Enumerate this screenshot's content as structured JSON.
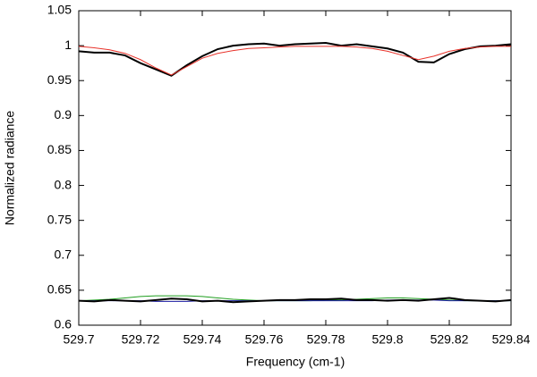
{
  "chart_data": {
    "type": "line",
    "x_label": "Frequency (cm-1)",
    "y_label": "Normalized radiance",
    "x": [
      529.7,
      529.705,
      529.71,
      529.715,
      529.72,
      529.725,
      529.73,
      529.735,
      529.74,
      529.745,
      529.75,
      529.755,
      529.76,
      529.765,
      529.77,
      529.775,
      529.78,
      529.785,
      529.79,
      529.795,
      529.8,
      529.805,
      529.81,
      529.815,
      529.82,
      529.825,
      529.83,
      529.835,
      529.84
    ],
    "series": [
      {
        "color": "#000000",
        "values": [
          0.992,
          0.99,
          0.99,
          0.986,
          0.975,
          0.966,
          0.957,
          0.972,
          0.985,
          0.995,
          1.0,
          1.002,
          1.003,
          1.0,
          1.002,
          1.003,
          1.004,
          1.0,
          1.002,
          0.999,
          0.996,
          0.99,
          0.977,
          0.976,
          0.988,
          0.995,
          0.999,
          1.0,
          1.002
        ]
      },
      {
        "color": "#e8322a",
        "values": [
          0.999,
          0.997,
          0.994,
          0.989,
          0.98,
          0.968,
          0.958,
          0.97,
          0.982,
          0.989,
          0.993,
          0.996,
          0.997,
          0.998,
          0.999,
          0.999,
          0.999,
          0.999,
          0.998,
          0.996,
          0.992,
          0.986,
          0.98,
          0.985,
          0.992,
          0.996,
          0.998,
          0.999,
          0.999
        ]
      },
      {
        "color": "#1f9e1f",
        "values": [
          0.635,
          0.636,
          0.637,
          0.639,
          0.641,
          0.642,
          0.642,
          0.642,
          0.641,
          0.639,
          0.637,
          0.636,
          0.635,
          0.635,
          0.635,
          0.635,
          0.636,
          0.636,
          0.637,
          0.638,
          0.639,
          0.639,
          0.638,
          0.637,
          0.636,
          0.635,
          0.635,
          0.635,
          0.635
        ]
      },
      {
        "color": "#1a1aa0",
        "values": [
          0.635,
          0.635,
          0.635,
          0.635,
          0.635,
          0.634,
          0.634,
          0.634,
          0.635,
          0.635,
          0.635,
          0.635,
          0.635,
          0.635,
          0.635,
          0.635,
          0.635,
          0.635,
          0.635,
          0.635,
          0.636,
          0.636,
          0.636,
          0.636,
          0.635,
          0.635,
          0.635,
          0.635,
          0.635
        ]
      },
      {
        "color": "#000000",
        "values": [
          0.635,
          0.634,
          0.636,
          0.635,
          0.634,
          0.636,
          0.638,
          0.637,
          0.634,
          0.635,
          0.633,
          0.634,
          0.635,
          0.636,
          0.636,
          0.637,
          0.637,
          0.638,
          0.636,
          0.636,
          0.635,
          0.636,
          0.635,
          0.637,
          0.639,
          0.636,
          0.635,
          0.634,
          0.636
        ]
      }
    ],
    "xlim": [
      529.7,
      529.84
    ],
    "xticks": [
      529.7,
      529.72,
      529.74,
      529.76,
      529.78,
      529.8,
      529.82,
      529.84
    ],
    "ylim": [
      0.6,
      1.05
    ],
    "yticks": [
      0.6,
      0.65,
      0.7,
      0.75,
      0.8,
      0.85,
      0.9,
      0.95,
      1,
      1.05
    ]
  }
}
